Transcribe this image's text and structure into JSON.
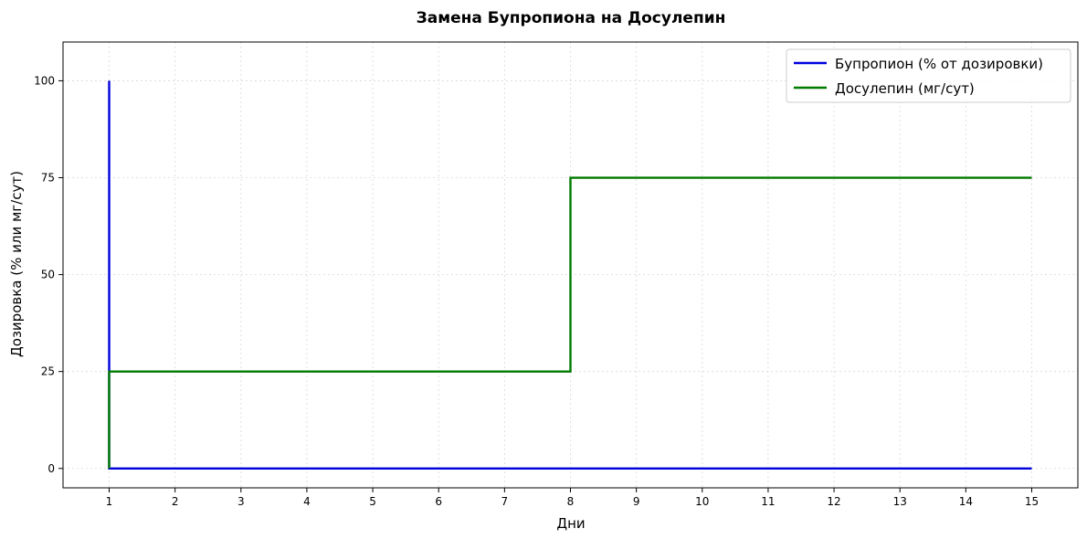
{
  "chart_data": {
    "type": "line",
    "title": "Замена Бупропиона на Досулепин",
    "xlabel": "Дни",
    "ylabel": "Дозировка (% или мг/сут)",
    "xlim": [
      0.3,
      15.7
    ],
    "ylim": [
      -5,
      110
    ],
    "xticks": [
      1,
      2,
      3,
      4,
      5,
      6,
      7,
      8,
      9,
      10,
      11,
      12,
      13,
      14,
      15
    ],
    "yticks": [
      0,
      25,
      50,
      75,
      100
    ],
    "grid": true,
    "legend_position": "top-right",
    "series": [
      {
        "name": "Бупропион (% от дозировки)",
        "color": "#0000dd",
        "points": [
          [
            1,
            100
          ],
          [
            1,
            0
          ],
          [
            15,
            0
          ]
        ]
      },
      {
        "name": "Досулепин (мг/сут)",
        "color": "#007a00",
        "points": [
          [
            1,
            0
          ],
          [
            1,
            25
          ],
          [
            8,
            25
          ],
          [
            8,
            75
          ],
          [
            15,
            75
          ]
        ]
      }
    ]
  }
}
